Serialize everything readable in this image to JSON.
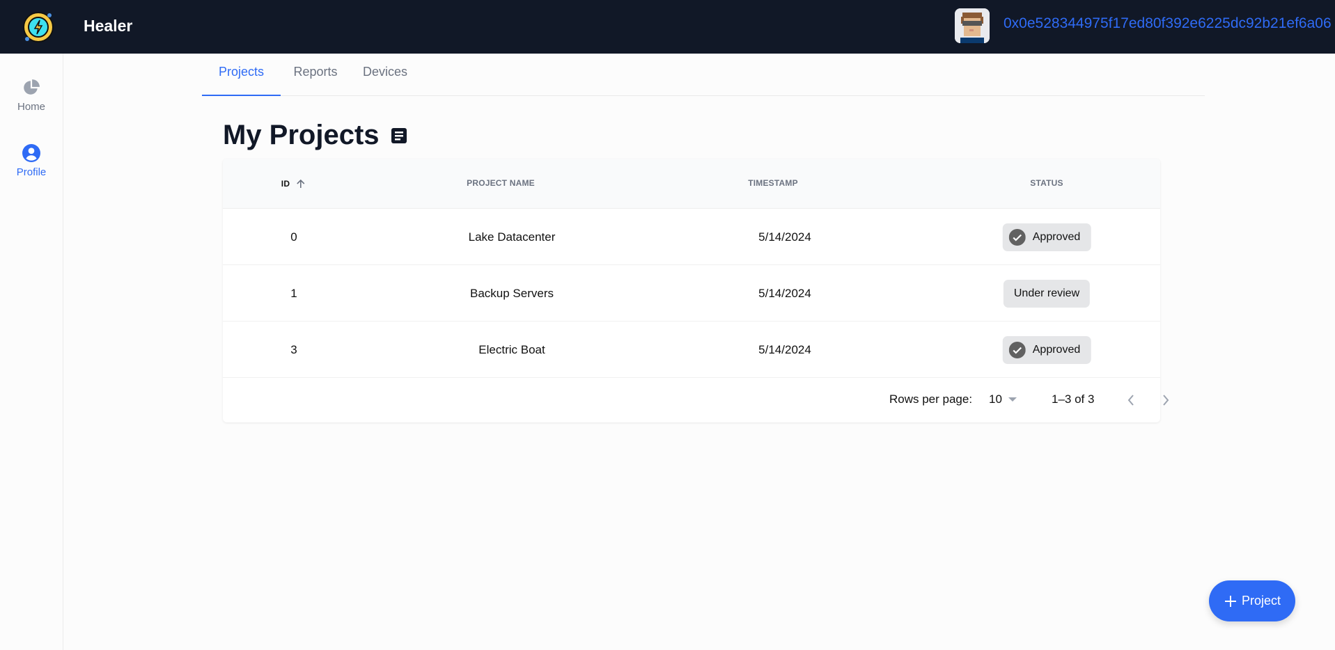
{
  "header": {
    "app_title": "Healer",
    "wallet_address": "0x0e528344975f17ed80f392e6225dc92b21ef6a06"
  },
  "sidebar": {
    "items": [
      {
        "label": "Home",
        "icon": "pie-chart-icon",
        "active": false
      },
      {
        "label": "Profile",
        "icon": "user-circle-icon",
        "active": true
      }
    ]
  },
  "tabs": [
    {
      "label": "Projects",
      "active": true
    },
    {
      "label": "Reports",
      "active": false
    },
    {
      "label": "Devices",
      "active": false
    }
  ],
  "page": {
    "title": "My Projects",
    "title_icon": "document-icon"
  },
  "table": {
    "columns": [
      "ID",
      "PROJECT NAME",
      "TIMESTAMP",
      "STATUS"
    ],
    "sort": {
      "column": "ID",
      "direction": "ascending"
    },
    "rows": [
      {
        "id": "0",
        "name": "Lake Datacenter",
        "timestamp": "5/14/2024",
        "status": "Approved",
        "approved": true
      },
      {
        "id": "1",
        "name": "Backup Servers",
        "timestamp": "5/14/2024",
        "status": "Under review",
        "approved": false
      },
      {
        "id": "3",
        "name": "Electric Boat",
        "timestamp": "5/14/2024",
        "status": "Approved",
        "approved": true
      }
    ]
  },
  "pagination": {
    "rows_per_page_label": "Rows per page:",
    "rows_per_page": "10",
    "range": "1–3 of 3"
  },
  "fab": {
    "label": "Project"
  },
  "colors": {
    "accent": "#2f6bf5",
    "topbar": "#111827",
    "chip": "#e5e6e8"
  }
}
